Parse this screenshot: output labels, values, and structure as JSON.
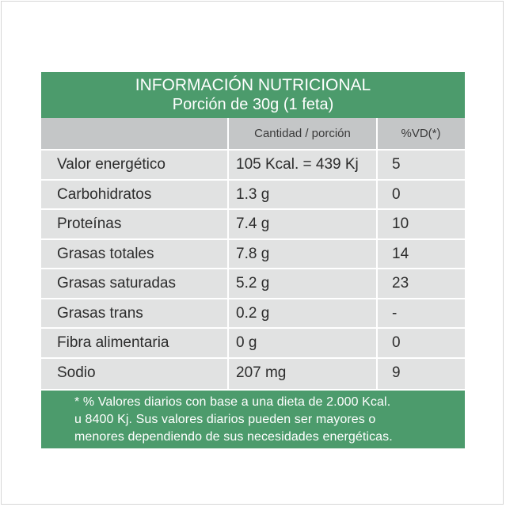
{
  "header": {
    "title": "INFORMACIÓN NUTRICIONAL",
    "serving": "Porción de 30g (1 feta)"
  },
  "columns": {
    "amount": "Cantidad / porción",
    "daily_value": "%VD(*)"
  },
  "rows": [
    {
      "name": "Valor energético",
      "amount": "105 Kcal. = 439 Kj",
      "dv": "5"
    },
    {
      "name": "Carbohidratos",
      "amount": "1.3 g",
      "dv": "0"
    },
    {
      "name": "Proteínas",
      "amount": "7.4 g",
      "dv": "10"
    },
    {
      "name": "Grasas totales",
      "amount": "7.8 g",
      "dv": "14"
    },
    {
      "name": "Grasas saturadas",
      "amount": "5.2 g",
      "dv": "23"
    },
    {
      "name": "Grasas trans",
      "amount": "0.2 g",
      "dv": "-"
    },
    {
      "name": "Fibra alimentaria",
      "amount": "0 g",
      "dv": "0"
    },
    {
      "name": "Sodio",
      "amount": "207 mg",
      "dv": "9"
    }
  ],
  "footnote": {
    "line1": "* % Valores diarios con base a una dieta de 2.000 Kcal.",
    "line2": "u 8400 Kj. Sus valores diarios pueden ser mayores o",
    "line3": "menores dependiendo de sus necesidades energéticas."
  },
  "colors": {
    "green": "#4c9b6c",
    "row_gray": "#e1e2e2",
    "header_gray": "#c4c6c7"
  }
}
